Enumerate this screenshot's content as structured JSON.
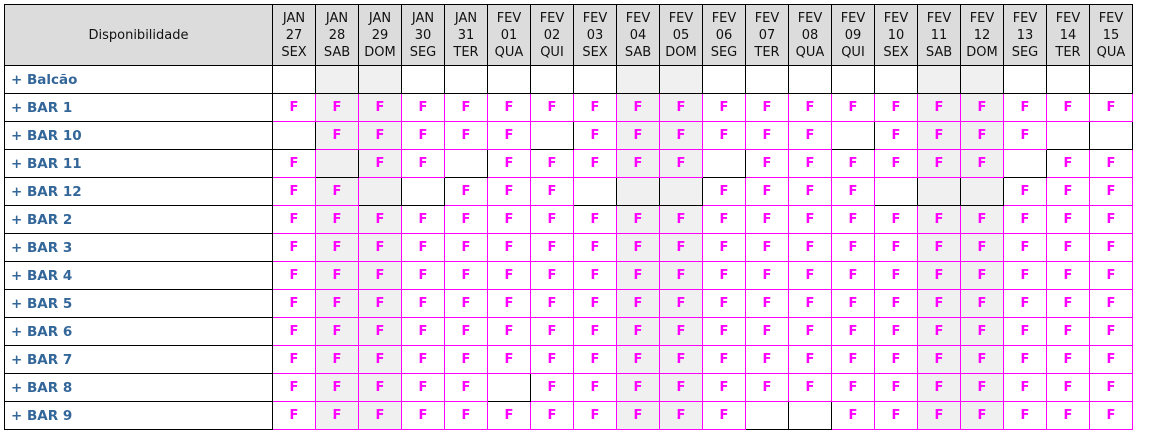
{
  "colors": {
    "flag": "#ff00ff",
    "label": "#336699",
    "weekend_bg": "#f0f0f0",
    "header_bg": "#dcdcdc"
  },
  "header": {
    "label": "Disponibilidade"
  },
  "columns": [
    {
      "month": "JAN",
      "day": "27",
      "weekday": "SEX",
      "weekend": false
    },
    {
      "month": "JAN",
      "day": "28",
      "weekday": "SAB",
      "weekend": true
    },
    {
      "month": "JAN",
      "day": "29",
      "weekday": "DOM",
      "weekend": true
    },
    {
      "month": "JAN",
      "day": "30",
      "weekday": "SEG",
      "weekend": false
    },
    {
      "month": "JAN",
      "day": "31",
      "weekday": "TER",
      "weekend": false
    },
    {
      "month": "FEV",
      "day": "01",
      "weekday": "QUA",
      "weekend": false
    },
    {
      "month": "FEV",
      "day": "02",
      "weekday": "QUI",
      "weekend": false
    },
    {
      "month": "FEV",
      "day": "03",
      "weekday": "SEX",
      "weekend": false
    },
    {
      "month": "FEV",
      "day": "04",
      "weekday": "SAB",
      "weekend": true
    },
    {
      "month": "FEV",
      "day": "05",
      "weekday": "DOM",
      "weekend": true
    },
    {
      "month": "FEV",
      "day": "06",
      "weekday": "SEG",
      "weekend": false
    },
    {
      "month": "FEV",
      "day": "07",
      "weekday": "TER",
      "weekend": false
    },
    {
      "month": "FEV",
      "day": "08",
      "weekday": "QUA",
      "weekend": false
    },
    {
      "month": "FEV",
      "day": "09",
      "weekday": "QUI",
      "weekend": false
    },
    {
      "month": "FEV",
      "day": "10",
      "weekday": "SEX",
      "weekend": false
    },
    {
      "month": "FEV",
      "day": "11",
      "weekday": "SAB",
      "weekend": true
    },
    {
      "month": "FEV",
      "day": "12",
      "weekday": "DOM",
      "weekend": true
    },
    {
      "month": "FEV",
      "day": "13",
      "weekday": "SEG",
      "weekend": false
    },
    {
      "month": "FEV",
      "day": "14",
      "weekday": "TER",
      "weekend": false
    },
    {
      "month": "FEV",
      "day": "15",
      "weekday": "QUA",
      "weekend": false
    }
  ],
  "rows": [
    {
      "label": "+ Balcão",
      "cells": [
        "",
        "",
        "",
        "",
        "",
        "",
        "",
        "",
        "",
        "",
        "",
        "",
        "",
        "",
        "",
        "",
        "",
        "",
        "",
        ""
      ]
    },
    {
      "label": "+ BAR 1",
      "cells": [
        "F",
        "F",
        "F",
        "F",
        "F",
        "F",
        "F",
        "F",
        "F",
        "F",
        "F",
        "F",
        "F",
        "F",
        "F",
        "F",
        "F",
        "F",
        "F",
        "F"
      ]
    },
    {
      "label": "+ BAR 10",
      "cells": [
        "",
        "F",
        "F",
        "F",
        "F",
        "F",
        "",
        "F",
        "F",
        "F",
        "F",
        "F",
        "F",
        "",
        "F",
        "F",
        "F",
        "F",
        "",
        ""
      ]
    },
    {
      "label": "+ BAR 11",
      "cells": [
        "F",
        "",
        "F",
        "F",
        "",
        "F",
        "F",
        "F",
        "F",
        "F",
        "",
        "F",
        "F",
        "F",
        "F",
        "F",
        "F",
        "",
        "F",
        "F"
      ]
    },
    {
      "label": "+ BAR 12",
      "cells": [
        "F",
        "F",
        "",
        "",
        "F",
        "F",
        "F",
        "",
        "",
        "",
        "F",
        "F",
        "F",
        "F",
        "",
        "",
        "",
        "F",
        "F",
        "F"
      ]
    },
    {
      "label": "+ BAR 2",
      "cells": [
        "F",
        "F",
        "F",
        "F",
        "F",
        "F",
        "F",
        "F",
        "F",
        "F",
        "F",
        "F",
        "F",
        "F",
        "F",
        "F",
        "F",
        "F",
        "F",
        "F"
      ]
    },
    {
      "label": "+ BAR 3",
      "cells": [
        "F",
        "F",
        "F",
        "F",
        "F",
        "F",
        "F",
        "F",
        "F",
        "F",
        "F",
        "F",
        "F",
        "F",
        "F",
        "F",
        "F",
        "F",
        "F",
        "F"
      ]
    },
    {
      "label": "+ BAR 4",
      "cells": [
        "F",
        "F",
        "F",
        "F",
        "F",
        "F",
        "F",
        "F",
        "F",
        "F",
        "F",
        "F",
        "F",
        "F",
        "F",
        "F",
        "F",
        "F",
        "F",
        "F"
      ]
    },
    {
      "label": "+ BAR 5",
      "cells": [
        "F",
        "F",
        "F",
        "F",
        "F",
        "F",
        "F",
        "F",
        "F",
        "F",
        "F",
        "F",
        "F",
        "F",
        "F",
        "F",
        "F",
        "F",
        "F",
        "F"
      ]
    },
    {
      "label": "+ BAR 6",
      "cells": [
        "F",
        "F",
        "F",
        "F",
        "F",
        "F",
        "F",
        "F",
        "F",
        "F",
        "F",
        "F",
        "F",
        "F",
        "F",
        "F",
        "F",
        "F",
        "F",
        "F"
      ]
    },
    {
      "label": "+ BAR 7",
      "cells": [
        "F",
        "F",
        "F",
        "F",
        "F",
        "F",
        "F",
        "F",
        "F",
        "F",
        "F",
        "F",
        "F",
        "F",
        "F",
        "F",
        "F",
        "F",
        "F",
        "F"
      ]
    },
    {
      "label": "+ BAR 8",
      "cells": [
        "F",
        "F",
        "F",
        "F",
        "F",
        "",
        "F",
        "F",
        "F",
        "F",
        "F",
        "F",
        "F",
        "F",
        "F",
        "F",
        "F",
        "F",
        "F",
        "F"
      ]
    },
    {
      "label": "+ BAR 9",
      "cells": [
        "F",
        "F",
        "F",
        "F",
        "F",
        "F",
        "F",
        "F",
        "F",
        "F",
        "F",
        "",
        "",
        "F",
        "F",
        "F",
        "F",
        "F",
        "F",
        "F"
      ]
    }
  ]
}
